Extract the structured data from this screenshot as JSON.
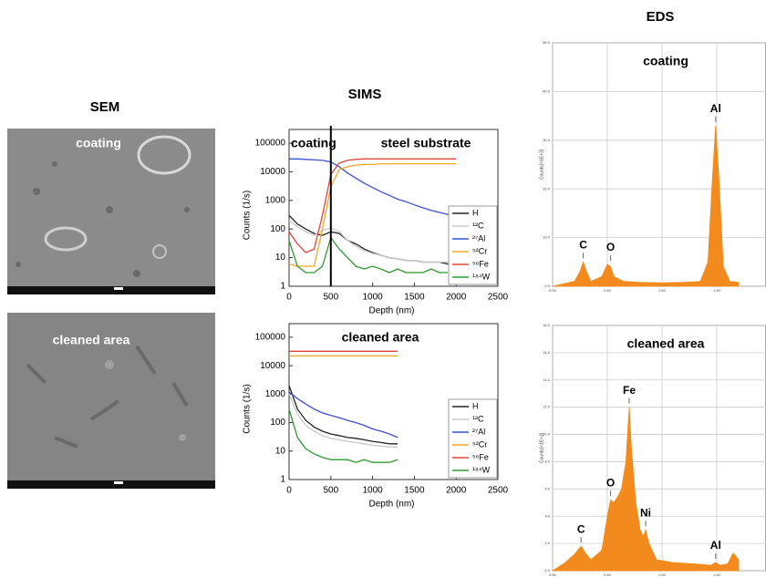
{
  "sem": {
    "heading": "SEM",
    "panels": [
      {
        "label": "coating"
      },
      {
        "label": "cleaned area"
      }
    ]
  },
  "sims_heading": "SIMS",
  "eds_heading": "EDS",
  "chart_data": [
    {
      "type": "line",
      "log_y": true,
      "xlabel": "Depth (nm)",
      "ylabel": "Counts (1/s)",
      "annotations": [
        "coating",
        "steel substrate"
      ],
      "vlines": [
        500
      ],
      "xlim": [
        0,
        2500
      ],
      "xticks": [
        0,
        500,
        1000,
        1500,
        2000,
        2500
      ],
      "ylim": [
        1,
        300000
      ],
      "yticks": [
        1,
        10,
        100,
        1000,
        10000,
        100000
      ],
      "x": [
        0,
        100,
        200,
        300,
        400,
        500,
        600,
        700,
        800,
        900,
        1000,
        1100,
        1200,
        1300,
        1400,
        1500,
        1600,
        1700,
        1800,
        1900,
        2000
      ],
      "series": [
        {
          "name": "H",
          "color": "#222222",
          "values": [
            300,
            150,
            100,
            70,
            60,
            80,
            70,
            40,
            30,
            20,
            15,
            12,
            10,
            9,
            8,
            8,
            7,
            7,
            7,
            6,
            6
          ]
        },
        {
          "name": "¹²C",
          "color": "#c8c8c8",
          "values": [
            200,
            120,
            80,
            60,
            90,
            110,
            80,
            40,
            25,
            18,
            14,
            12,
            10,
            9,
            8,
            8,
            7,
            7,
            7,
            7,
            7
          ]
        },
        {
          "name": "²⁷Al",
          "color": "#3b4fd8",
          "values": [
            28000,
            28000,
            27000,
            26000,
            25000,
            22000,
            15000,
            9000,
            6000,
            4000,
            2800,
            2000,
            1500,
            1100,
            900,
            700,
            550,
            450,
            380,
            320,
            270
          ]
        },
        {
          "name": "⁵²Cr",
          "color": "#f5a623",
          "values": [
            6,
            5,
            5,
            5,
            100,
            3000,
            12000,
            15000,
            17000,
            18000,
            18000,
            19000,
            19000,
            19000,
            19000,
            19000,
            19000,
            19000,
            19000,
            19000,
            19000
          ]
        },
        {
          "name": "⁵⁶Fe",
          "color": "#e0453a",
          "values": [
            80,
            30,
            15,
            20,
            300,
            8000,
            20000,
            25000,
            27000,
            28000,
            28000,
            28000,
            28000,
            28000,
            28000,
            28000,
            28000,
            28000,
            28000,
            28000,
            28000
          ]
        },
        {
          "name": "¹⁸⁴W",
          "color": "#2e9a2e",
          "values": [
            40,
            5,
            3,
            3,
            5,
            50,
            20,
            10,
            5,
            4,
            5,
            4,
            3,
            4,
            3,
            3,
            3,
            4,
            3,
            3,
            null
          ]
        }
      ]
    },
    {
      "type": "line",
      "log_y": true,
      "xlabel": "Depth (nm)",
      "ylabel": "Counts (1/s)",
      "annotations": [
        "cleaned area"
      ],
      "xlim": [
        0,
        2500
      ],
      "xticks": [
        0,
        500,
        1000,
        1500,
        2000,
        2500
      ],
      "ylim": [
        1,
        300000
      ],
      "yticks": [
        1,
        10,
        100,
        1000,
        10000,
        100000
      ],
      "x": [
        0,
        100,
        200,
        300,
        400,
        500,
        600,
        700,
        800,
        900,
        1000,
        1100,
        1200,
        1300
      ],
      "series": [
        {
          "name": "H",
          "color": "#222222",
          "values": [
            2000,
            300,
            120,
            70,
            50,
            40,
            35,
            30,
            28,
            25,
            22,
            20,
            18,
            18
          ]
        },
        {
          "name": "¹²C",
          "color": "#c8c8c8",
          "values": [
            1000,
            200,
            80,
            50,
            35,
            28,
            25,
            22,
            20,
            18,
            16,
            15,
            14,
            14
          ]
        },
        {
          "name": "²⁷Al",
          "color": "#3b4fd8",
          "values": [
            1200,
            700,
            450,
            300,
            220,
            180,
            150,
            120,
            100,
            80,
            60,
            50,
            40,
            30
          ]
        },
        {
          "name": "⁵²Cr",
          "color": "#f5a623",
          "values": [
            22000,
            22000,
            22000,
            22000,
            22000,
            22000,
            22000,
            22000,
            22000,
            22000,
            22000,
            22000,
            22000,
            22000
          ]
        },
        {
          "name": "⁵⁶Fe",
          "color": "#e0453a",
          "values": [
            32000,
            32000,
            32000,
            32000,
            32000,
            32000,
            32000,
            32000,
            32000,
            32000,
            32000,
            32000,
            32000,
            32000
          ]
        },
        {
          "name": "¹⁸⁴W",
          "color": "#2e9a2e",
          "values": [
            300,
            30,
            12,
            8,
            6,
            5,
            5,
            5,
            4,
            5,
            4,
            4,
            4,
            5
          ]
        }
      ]
    },
    {
      "type": "area",
      "title": "coating",
      "ylabel": "Counts[×1E+3]",
      "color": "#f28a1d",
      "xlim": [
        0,
        1.95
      ],
      "xticks": [
        {
          "value": 0,
          "label": "0.00"
        },
        {
          "value": 0.5,
          "label": "0.50"
        },
        {
          "value": 1,
          "label": "1.00"
        },
        {
          "value": 1.5,
          "label": "1.50"
        }
      ],
      "ylim": [
        0,
        50
      ],
      "yticks": [
        {
          "value": 0,
          "label": "0.0"
        },
        {
          "value": 10,
          "label": "10.0"
        },
        {
          "value": 20,
          "label": "20.0"
        },
        {
          "value": 30,
          "label": "30.0"
        },
        {
          "value": 40,
          "label": "40.0"
        },
        {
          "value": 50,
          "label": "50.0"
        }
      ],
      "x": [
        0,
        0.1,
        0.2,
        0.25,
        0.28,
        0.31,
        0.35,
        0.45,
        0.5,
        0.53,
        0.56,
        0.65,
        0.8,
        1.0,
        1.2,
        1.35,
        1.42,
        1.46,
        1.49,
        1.52,
        1.56,
        1.62,
        1.7
      ],
      "values": [
        0,
        0.5,
        1,
        3,
        5,
        3,
        1,
        2,
        4.5,
        4,
        2,
        1,
        0.8,
        0.7,
        0.8,
        1,
        5,
        22,
        33,
        22,
        4,
        1,
        0.8
      ],
      "peaks": [
        {
          "label": "C",
          "x": 0.28,
          "y": 5
        },
        {
          "label": "O",
          "x": 0.53,
          "y": 4.5
        },
        {
          "label": "Al",
          "x": 1.49,
          "y": 33
        }
      ]
    },
    {
      "type": "area",
      "title": "cleaned area",
      "ylabel": "Counts[×1E+3]",
      "color": "#f28a1d",
      "xlim": [
        0,
        1.95
      ],
      "xticks": [
        {
          "value": 0,
          "label": "0.00"
        },
        {
          "value": 0.5,
          "label": "0.50"
        },
        {
          "value": 1,
          "label": "1.00"
        },
        {
          "value": 1.5,
          "label": "1.50"
        }
      ],
      "ylim": [
        0,
        18
      ],
      "yticks": [
        {
          "value": 0,
          "label": "0.0"
        },
        {
          "value": 2,
          "label": "2.0"
        },
        {
          "value": 4,
          "label": "4.0"
        },
        {
          "value": 6,
          "label": "6.0"
        },
        {
          "value": 8,
          "label": "8.0"
        },
        {
          "value": 10,
          "label": "10.0"
        },
        {
          "value": 12,
          "label": "12.0"
        },
        {
          "value": 14,
          "label": "14.0"
        },
        {
          "value": 16,
          "label": "16.0"
        },
        {
          "value": 18,
          "label": "18.0"
        }
      ],
      "x": [
        0,
        0.1,
        0.2,
        0.26,
        0.3,
        0.35,
        0.45,
        0.5,
        0.53,
        0.56,
        0.6,
        0.63,
        0.67,
        0.7,
        0.72,
        0.76,
        0.8,
        0.83,
        0.85,
        0.88,
        0.95,
        1.1,
        1.3,
        1.45,
        1.49,
        1.53,
        1.6,
        1.65,
        1.7
      ],
      "values": [
        0,
        0.5,
        1.2,
        1.8,
        1.3,
        0.8,
        1.5,
        4,
        5.2,
        5,
        5.5,
        6,
        8,
        12,
        9,
        5,
        3,
        2.5,
        3,
        2,
        0.8,
        0.6,
        0.5,
        0.4,
        0.6,
        0.4,
        0.5,
        1.3,
        0.8
      ],
      "peaks": [
        {
          "label": "C",
          "x": 0.26,
          "y": 1.8
        },
        {
          "label": "O",
          "x": 0.53,
          "y": 5.2
        },
        {
          "label": "Fe",
          "x": 0.7,
          "y": 12
        },
        {
          "label": "Ni",
          "x": 0.85,
          "y": 3
        },
        {
          "label": "Al",
          "x": 1.49,
          "y": 0.6
        }
      ]
    }
  ]
}
